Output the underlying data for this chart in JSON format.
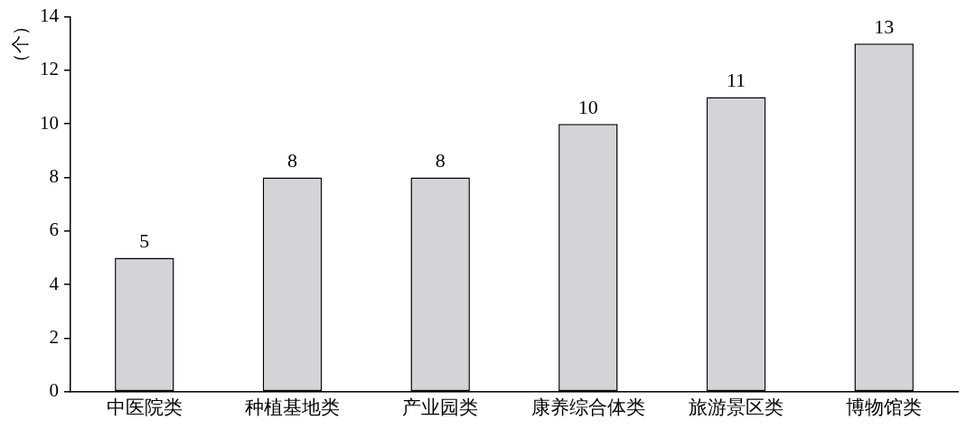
{
  "chart_data": {
    "type": "bar",
    "ylabel": "（个）",
    "categories": [
      "中医院类",
      "种植基地类",
      "产业园类",
      "康养综合体类",
      "旅游景区类",
      "博物馆类"
    ],
    "values": [
      5,
      8,
      8,
      10,
      11,
      13
    ],
    "color": "#d4d4d8",
    "ylim": [
      0,
      14
    ],
    "yticks": [
      0,
      2,
      4,
      6,
      8,
      10,
      12,
      14
    ],
    "grid": false,
    "legend": false,
    "data_labels": true
  }
}
